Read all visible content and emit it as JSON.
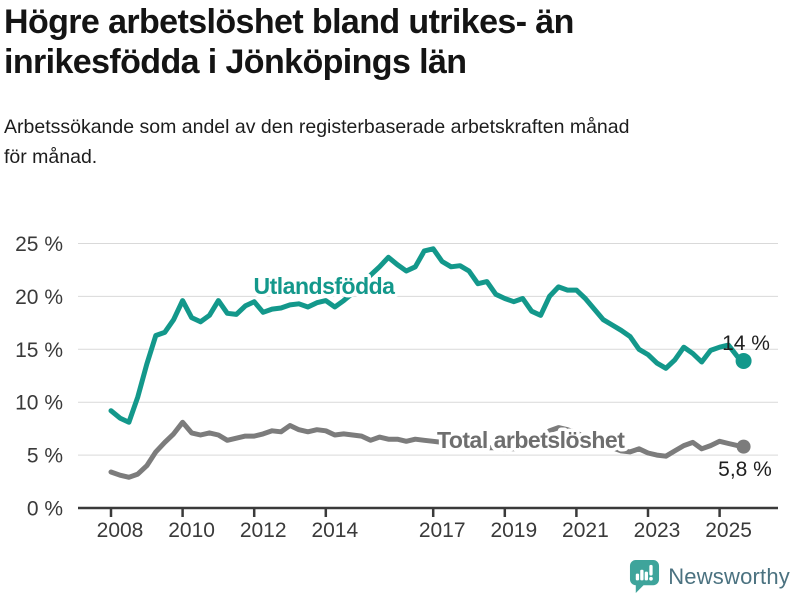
{
  "header": {
    "title": "Högre arbetslöshet bland utrikes- än inrikesfödda i Jönköpings län",
    "subtitle": "Arbetssökande som andel av den registerbaserade arbetskraften månad för månad."
  },
  "footer": {
    "brand_name": "Newsworthy",
    "brand_icon": "bar-chart-speech-bubble-icon"
  },
  "colors": {
    "accent_teal": "#13988b",
    "series_gray": "#7c7c7c",
    "gray_label": "#6e6e6e",
    "grid": "#d9d9d9",
    "axis": "#3a3a3a",
    "value_text": "#1f1f1f",
    "brand_icon_teal": "#3ea49b",
    "brand_text": "#4b7280"
  },
  "chart_data": {
    "type": "line",
    "title": "Högre arbetslöshet bland utrikes- än inrikesfödda i Jönköpings län",
    "subtitle": "Arbetssökande som andel av den registerbaserade arbetskraften månad för månad.",
    "unit": "%",
    "grid": true,
    "legend": "inline-labels",
    "ylim": [
      0,
      25
    ],
    "xlim": [
      2008,
      2025.75
    ],
    "y_ticks": [
      {
        "value": 0,
        "label": "0 %"
      },
      {
        "value": 5,
        "label": "5 %"
      },
      {
        "value": 10,
        "label": "10 %"
      },
      {
        "value": 15,
        "label": "15 %"
      },
      {
        "value": 20,
        "label": "20 %"
      },
      {
        "value": 25,
        "label": "25 %"
      }
    ],
    "x_ticks": [
      {
        "value": 2008,
        "label": "2008"
      },
      {
        "value": 2010,
        "label": "2010"
      },
      {
        "value": 2012,
        "label": "2012"
      },
      {
        "value": 2014,
        "label": "2014"
      },
      {
        "value": 2017,
        "label": "2017"
      },
      {
        "value": 2019,
        "label": "2019"
      },
      {
        "value": 2021,
        "label": "2021"
      },
      {
        "value": 2023,
        "label": "2023"
      },
      {
        "value": 2025,
        "label": "2025"
      }
    ],
    "x": [
      2008,
      2008.25,
      2008.5,
      2008.75,
      2009,
      2009.25,
      2009.5,
      2009.75,
      2010,
      2010.25,
      2010.5,
      2010.75,
      2011,
      2011.25,
      2011.5,
      2011.75,
      2012,
      2012.25,
      2012.5,
      2012.75,
      2013,
      2013.25,
      2013.5,
      2013.75,
      2014,
      2014.25,
      2014.5,
      2014.75,
      2015,
      2015.25,
      2015.5,
      2015.75,
      2016,
      2016.25,
      2016.5,
      2016.75,
      2017,
      2017.25,
      2017.5,
      2017.75,
      2018,
      2018.25,
      2018.5,
      2018.75,
      2019,
      2019.25,
      2019.5,
      2019.75,
      2020,
      2020.25,
      2020.5,
      2020.75,
      2021,
      2021.25,
      2021.5,
      2021.75,
      2022,
      2022.25,
      2022.5,
      2022.75,
      2023,
      2023.25,
      2023.5,
      2023.75,
      2024,
      2024.25,
      2024.5,
      2024.75,
      2025,
      2025.25,
      2025.5,
      2025.67
    ],
    "series": [
      {
        "name": "Utlandsfödda",
        "color": "#13988b",
        "end_label": "14 %",
        "values": [
          9.2,
          8.5,
          8.1,
          10.5,
          13.6,
          16.3,
          16.6,
          17.8,
          19.6,
          18.0,
          17.6,
          18.2,
          19.6,
          18.4,
          18.3,
          19.1,
          19.5,
          18.5,
          18.8,
          18.9,
          19.2,
          19.3,
          19.0,
          19.4,
          19.6,
          19.0,
          19.6,
          20.3,
          21.2,
          22.0,
          22.8,
          23.7,
          23.0,
          22.4,
          22.8,
          24.3,
          24.5,
          23.3,
          22.8,
          22.9,
          22.4,
          21.2,
          21.4,
          20.2,
          19.8,
          19.5,
          19.8,
          18.6,
          18.2,
          20.0,
          20.9,
          20.6,
          20.6,
          19.8,
          18.8,
          17.8,
          17.3,
          16.8,
          16.2,
          15.0,
          14.5,
          13.7,
          13.2,
          14.0,
          15.2,
          14.6,
          13.8,
          14.9,
          15.2,
          15.4,
          14.3,
          13.9
        ]
      },
      {
        "name": "Total arbetslöshet",
        "color": "#7c7c7c",
        "end_label": "5,8 %",
        "values": [
          3.4,
          3.1,
          2.9,
          3.2,
          4.0,
          5.3,
          6.2,
          7.0,
          8.1,
          7.1,
          6.9,
          7.1,
          6.9,
          6.4,
          6.6,
          6.8,
          6.8,
          7.0,
          7.3,
          7.2,
          7.8,
          7.4,
          7.2,
          7.4,
          7.3,
          6.9,
          7.0,
          6.9,
          6.8,
          6.4,
          6.7,
          6.5,
          6.5,
          6.3,
          6.5,
          6.4,
          6.3,
          6.2,
          6.1,
          6.0,
          5.9,
          5.8,
          5.7,
          5.7,
          5.6,
          5.6,
          5.7,
          5.9,
          6.2,
          7.3,
          7.6,
          7.4,
          7.1,
          6.7,
          6.3,
          6.0,
          5.7,
          5.4,
          5.3,
          5.6,
          5.2,
          5.0,
          4.9,
          5.4,
          5.9,
          6.2,
          5.6,
          5.9,
          6.3,
          6.1,
          5.9,
          5.8
        ]
      }
    ]
  }
}
